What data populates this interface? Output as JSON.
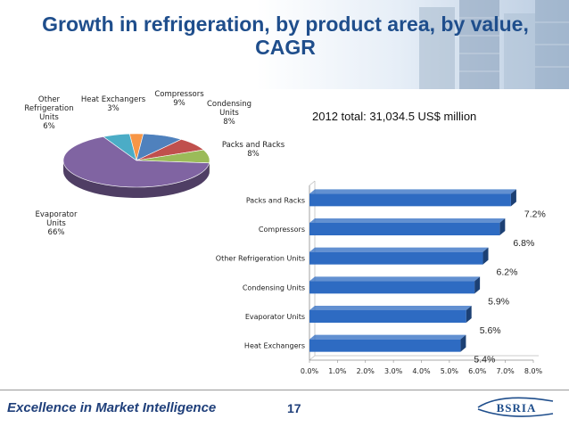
{
  "slide": {
    "title": "Growth in refrigeration, by product area, by value, CAGR",
    "footer": "Excellence in Market Intelligence",
    "page_number": "17",
    "logo_text": "BSRIA"
  },
  "chart_data": [
    {
      "type": "pie",
      "note": "2012 total: 31,034.5 US$ million",
      "slices": [
        {
          "label": "Heat Exchangers",
          "value": 3,
          "display": "3%",
          "color": "#f79646"
        },
        {
          "label": "Compressors",
          "value": 9,
          "display": "9%",
          "color": "#4f81bd"
        },
        {
          "label": "Condensing Units",
          "value": 8,
          "display": "8%",
          "color": "#c0504d"
        },
        {
          "label": "Packs and Racks",
          "value": 8,
          "display": "8%",
          "color": "#9bbb59"
        },
        {
          "label": "Evaporator Units",
          "value": 66,
          "display": "66%",
          "color": "#8064a2"
        },
        {
          "label": "Other Refrigeration Units",
          "value": 6,
          "display": "6%",
          "color": "#4bacc6"
        }
      ]
    },
    {
      "type": "bar",
      "orientation": "horizontal",
      "categories": [
        "Packs and Racks",
        "Compressors",
        "Other Refrigeration Units",
        "Condensing Units",
        "Evaporator Units",
        "Heat Exchangers"
      ],
      "values": [
        7.2,
        6.8,
        6.2,
        5.9,
        5.6,
        5.4
      ],
      "data_labels": [
        "7.2%",
        "6.8%",
        "6.2%",
        "5.9%",
        "5.6%",
        "5.4%"
      ],
      "x_ticks": [
        "0.0%",
        "1.0%",
        "2.0%",
        "3.0%",
        "4.0%",
        "5.0%",
        "6.0%",
        "7.0%",
        "8.0%"
      ],
      "xlim": [
        0,
        8
      ],
      "bar_color": "#2e6bc2"
    }
  ]
}
